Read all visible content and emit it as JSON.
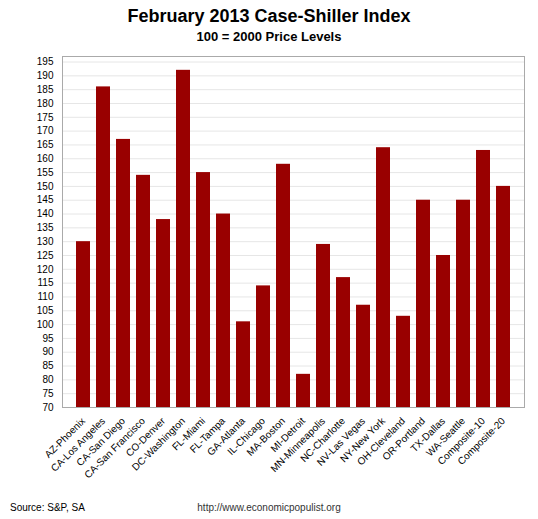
{
  "chart_data": {
    "type": "bar",
    "title": "February 2013 Case-Shiller Index",
    "subtitle": "100 = 2000 Price Levels",
    "categories": [
      "AZ-Phoenix",
      "CA-Los Angeles",
      "CA-San Diego",
      "CA-San Francisco",
      "CO-Denver",
      "DC-Washington",
      "FL-Miami",
      "FL-Tampa",
      "GA-Atlanta",
      "IL-Chicago",
      "MA-Boston",
      "MI-Detroit",
      "MN-Minneapolis",
      "NC-Charlotte",
      "NV-Las Vegas",
      "NY-New York",
      "OH-Cleveland",
      "OR-Portland",
      "TX-Dallas",
      "WA-Seattle",
      "Composite-10",
      "Composite-20"
    ],
    "values": [
      130,
      186,
      167,
      154,
      138,
      192,
      155,
      140,
      101,
      114,
      158,
      82,
      129,
      117,
      107,
      164,
      103,
      145,
      125,
      145,
      163,
      150
    ],
    "color": "#990000",
    "ylim": [
      70,
      197
    ],
    "yticks": [
      70,
      75,
      80,
      85,
      90,
      95,
      100,
      105,
      110,
      115,
      120,
      125,
      130,
      135,
      140,
      145,
      150,
      155,
      160,
      165,
      170,
      175,
      180,
      185,
      190,
      195
    ],
    "grid": true,
    "annotations": [
      "Source: S&P,  SA",
      "http://www.economicpopulist.org"
    ]
  }
}
